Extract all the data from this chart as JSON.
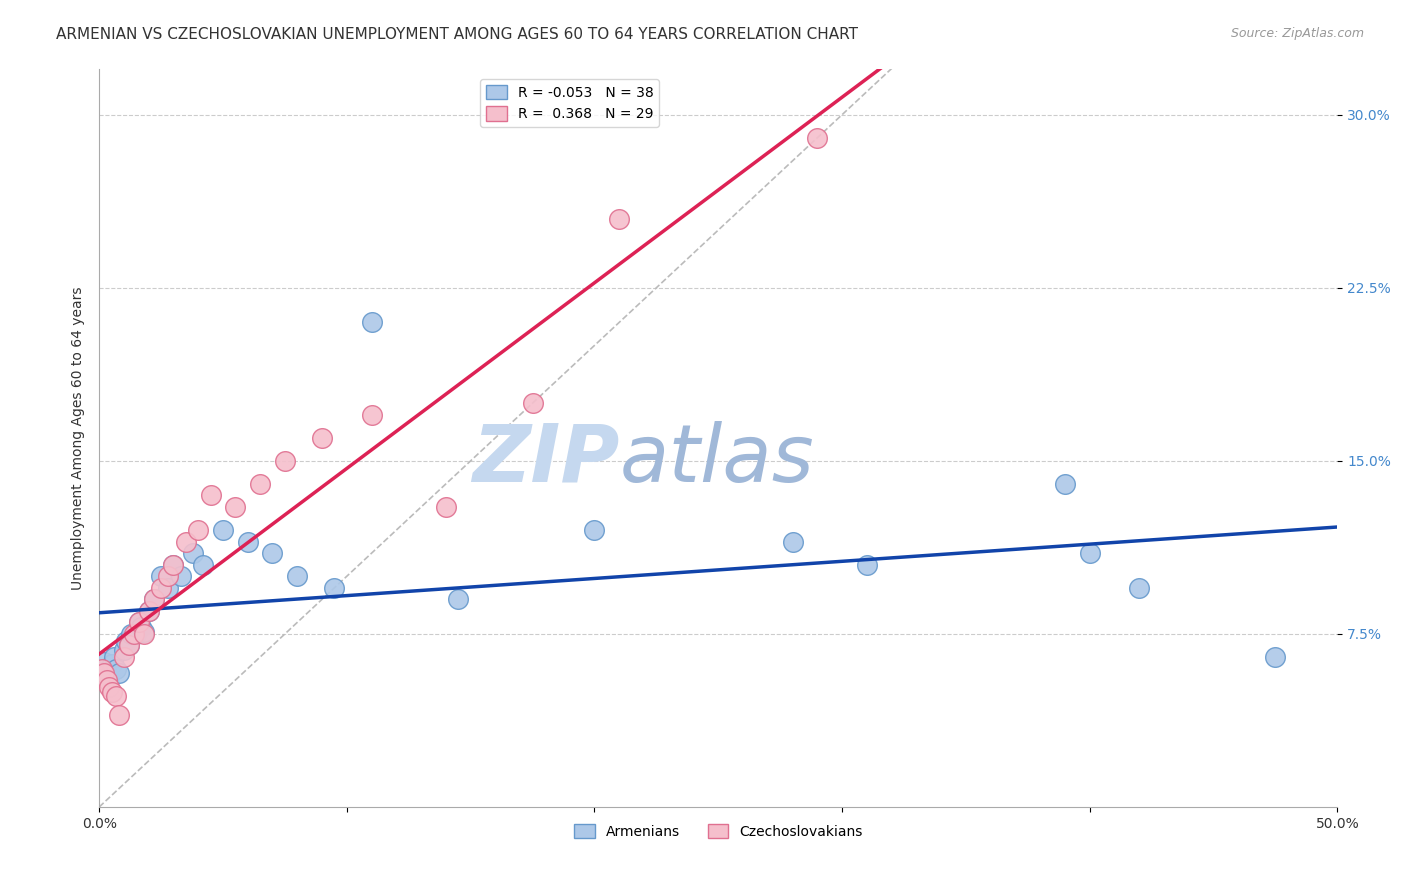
{
  "title": "ARMENIAN VS CZECHOSLOVAKIAN UNEMPLOYMENT AMONG AGES 60 TO 64 YEARS CORRELATION CHART",
  "source": "Source: ZipAtlas.com",
  "ylabel": "Unemployment Among Ages 60 to 64 years",
  "xlim": [
    0.0,
    0.5
  ],
  "ylim": [
    0.0,
    0.32
  ],
  "xtick_positions": [
    0.0,
    0.1,
    0.2,
    0.3,
    0.4,
    0.5
  ],
  "xtick_labels_show": [
    "0.0%",
    "",
    "",
    "",
    "",
    "50.0%"
  ],
  "ytick_positions": [
    0.075,
    0.15,
    0.225,
    0.3
  ],
  "ytick_labels": [
    "7.5%",
    "15.0%",
    "22.5%",
    "30.0%"
  ],
  "grid_color": "#cccccc",
  "background_color": "#ffffff",
  "armenians_x": [
    0.001,
    0.002,
    0.003,
    0.004,
    0.005,
    0.006,
    0.007,
    0.008,
    0.01,
    0.011,
    0.012,
    0.013,
    0.015,
    0.016,
    0.017,
    0.018,
    0.02,
    0.022,
    0.025,
    0.028,
    0.03,
    0.033,
    0.038,
    0.042,
    0.05,
    0.06,
    0.07,
    0.08,
    0.095,
    0.11,
    0.145,
    0.2,
    0.28,
    0.31,
    0.39,
    0.4,
    0.42,
    0.475
  ],
  "armenians_y": [
    0.06,
    0.063,
    0.058,
    0.057,
    0.062,
    0.065,
    0.06,
    0.058,
    0.068,
    0.072,
    0.07,
    0.075,
    0.075,
    0.08,
    0.078,
    0.076,
    0.085,
    0.09,
    0.1,
    0.095,
    0.105,
    0.1,
    0.11,
    0.105,
    0.12,
    0.115,
    0.11,
    0.1,
    0.095,
    0.21,
    0.09,
    0.12,
    0.115,
    0.105,
    0.14,
    0.11,
    0.095,
    0.065
  ],
  "czechoslovakians_x": [
    0.001,
    0.002,
    0.003,
    0.004,
    0.005,
    0.007,
    0.008,
    0.01,
    0.012,
    0.014,
    0.016,
    0.018,
    0.02,
    0.022,
    0.025,
    0.028,
    0.03,
    0.035,
    0.04,
    0.045,
    0.055,
    0.065,
    0.075,
    0.09,
    0.11,
    0.14,
    0.175,
    0.21,
    0.29
  ],
  "czechoslovakians_y": [
    0.06,
    0.058,
    0.055,
    0.052,
    0.05,
    0.048,
    0.04,
    0.065,
    0.07,
    0.075,
    0.08,
    0.075,
    0.085,
    0.09,
    0.095,
    0.1,
    0.105,
    0.115,
    0.12,
    0.135,
    0.13,
    0.14,
    0.15,
    0.16,
    0.17,
    0.13,
    0.175,
    0.255,
    0.29
  ],
  "armenians_R": -0.053,
  "armenians_N": 38,
  "czechoslovakians_R": 0.368,
  "czechoslovakians_N": 29,
  "armenians_color": "#adc8e8",
  "czechoslovakians_color": "#f5bfcc",
  "armenians_edge_color": "#6699cc",
  "czechoslovakians_edge_color": "#e07090",
  "trend_armenians_color": "#1144aa",
  "trend_czechoslovakians_color": "#dd2255",
  "diagonal_color": "#bbbbbb",
  "legend_armenians": "Armenians",
  "legend_czechoslovakians": "Czechoslovakians",
  "watermark_zip": "ZIP",
  "watermark_atlas": "atlas",
  "watermark_zip_color": "#c5d8ef",
  "watermark_atlas_color": "#a0b8d8",
  "title_fontsize": 11,
  "axis_label_fontsize": 10,
  "tick_fontsize": 10,
  "legend_fontsize": 10
}
